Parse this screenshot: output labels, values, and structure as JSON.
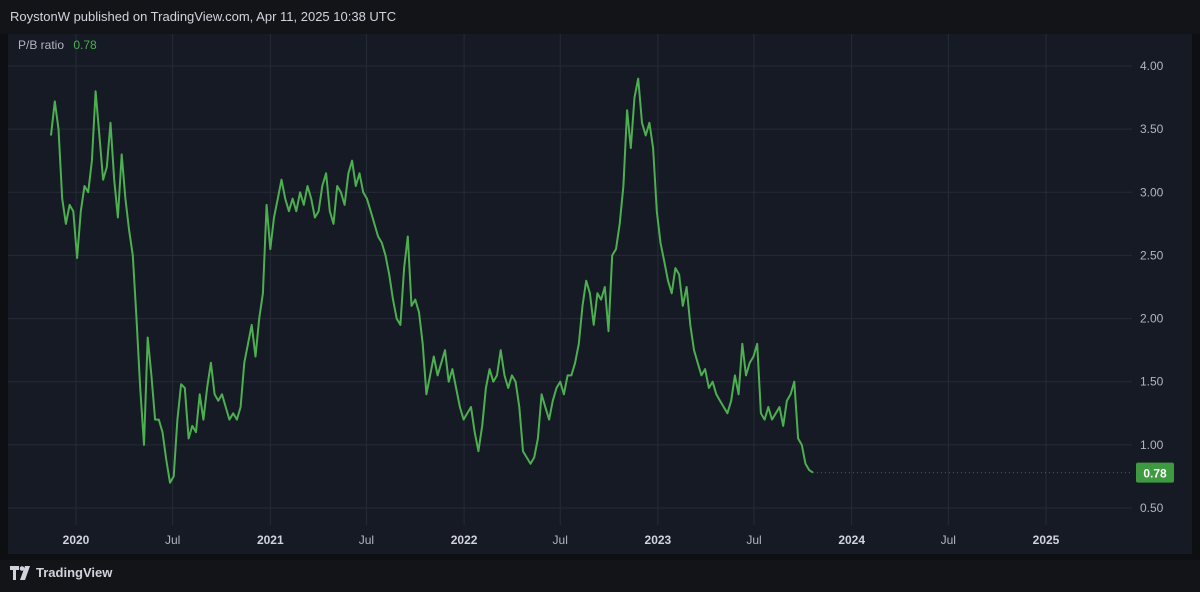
{
  "header": {
    "published": "RoystonW published on TradingView.com, Apr 11, 2025 10:38 UTC"
  },
  "legend": {
    "name": "P/B ratio",
    "value": "0.78"
  },
  "brand": {
    "name": "TradingView"
  },
  "colors": {
    "background": "#161a25",
    "line": "#4caf50",
    "grid": "#262b38",
    "text": "#b2b5be",
    "label_bg": "#3d9a40"
  },
  "chart_data": {
    "type": "line",
    "title": "",
    "series": [
      {
        "name": "P/B ratio",
        "color": "#4caf50",
        "points": [
          [
            "2019-11-15",
            3.45
          ],
          [
            "2019-11-22",
            3.72
          ],
          [
            "2019-11-29",
            3.5
          ],
          [
            "2019-12-06",
            2.95
          ],
          [
            "2019-12-13",
            2.75
          ],
          [
            "2019-12-20",
            2.9
          ],
          [
            "2019-12-27",
            2.85
          ],
          [
            "2020-01-03",
            2.48
          ],
          [
            "2020-01-10",
            2.85
          ],
          [
            "2020-01-17",
            3.05
          ],
          [
            "2020-01-24",
            3.0
          ],
          [
            "2020-01-31",
            3.25
          ],
          [
            "2020-02-07",
            3.8
          ],
          [
            "2020-02-14",
            3.45
          ],
          [
            "2020-02-21",
            3.1
          ],
          [
            "2020-02-28",
            3.2
          ],
          [
            "2020-03-06",
            3.55
          ],
          [
            "2020-03-13",
            3.1
          ],
          [
            "2020-03-20",
            2.8
          ],
          [
            "2020-03-27",
            3.3
          ],
          [
            "2020-04-03",
            2.95
          ],
          [
            "2020-04-10",
            2.7
          ],
          [
            "2020-04-17",
            2.5
          ],
          [
            "2020-04-24",
            2.0
          ],
          [
            "2020-05-01",
            1.45
          ],
          [
            "2020-05-08",
            1.0
          ],
          [
            "2020-05-15",
            1.85
          ],
          [
            "2020-05-22",
            1.55
          ],
          [
            "2020-05-29",
            1.2
          ],
          [
            "2020-06-05",
            1.2
          ],
          [
            "2020-06-12",
            1.1
          ],
          [
            "2020-06-19",
            0.88
          ],
          [
            "2020-06-26",
            0.7
          ],
          [
            "2020-07-03",
            0.75
          ],
          [
            "2020-07-10",
            1.2
          ],
          [
            "2020-07-17",
            1.48
          ],
          [
            "2020-07-24",
            1.45
          ],
          [
            "2020-07-31",
            1.05
          ],
          [
            "2020-08-07",
            1.15
          ],
          [
            "2020-08-14",
            1.1
          ],
          [
            "2020-08-21",
            1.4
          ],
          [
            "2020-08-28",
            1.2
          ],
          [
            "2020-09-04",
            1.45
          ],
          [
            "2020-09-11",
            1.65
          ],
          [
            "2020-09-18",
            1.4
          ],
          [
            "2020-09-25",
            1.35
          ],
          [
            "2020-10-02",
            1.4
          ],
          [
            "2020-10-09",
            1.3
          ],
          [
            "2020-10-16",
            1.2
          ],
          [
            "2020-10-23",
            1.25
          ],
          [
            "2020-10-30",
            1.2
          ],
          [
            "2020-11-06",
            1.3
          ],
          [
            "2020-11-13",
            1.65
          ],
          [
            "2020-11-20",
            1.8
          ],
          [
            "2020-11-27",
            1.95
          ],
          [
            "2020-12-04",
            1.7
          ],
          [
            "2020-12-11",
            2.0
          ],
          [
            "2020-12-18",
            2.2
          ],
          [
            "2020-12-25",
            2.9
          ],
          [
            "2021-01-01",
            2.55
          ],
          [
            "2021-01-08",
            2.8
          ],
          [
            "2021-01-15",
            2.95
          ],
          [
            "2021-01-22",
            3.1
          ],
          [
            "2021-01-29",
            2.95
          ],
          [
            "2021-02-05",
            2.85
          ],
          [
            "2021-02-12",
            2.95
          ],
          [
            "2021-02-19",
            2.85
          ],
          [
            "2021-02-26",
            3.0
          ],
          [
            "2021-03-05",
            2.9
          ],
          [
            "2021-03-12",
            3.05
          ],
          [
            "2021-03-19",
            2.95
          ],
          [
            "2021-03-26",
            2.8
          ],
          [
            "2021-04-02",
            2.85
          ],
          [
            "2021-04-09",
            3.05
          ],
          [
            "2021-04-16",
            3.15
          ],
          [
            "2021-04-23",
            2.85
          ],
          [
            "2021-04-30",
            2.75
          ],
          [
            "2021-05-07",
            3.05
          ],
          [
            "2021-05-14",
            3.0
          ],
          [
            "2021-05-21",
            2.9
          ],
          [
            "2021-05-28",
            3.15
          ],
          [
            "2021-06-04",
            3.25
          ],
          [
            "2021-06-11",
            3.05
          ],
          [
            "2021-06-18",
            3.15
          ],
          [
            "2021-06-25",
            3.0
          ],
          [
            "2021-07-02",
            2.95
          ],
          [
            "2021-07-09",
            2.85
          ],
          [
            "2021-07-16",
            2.75
          ],
          [
            "2021-07-23",
            2.65
          ],
          [
            "2021-07-30",
            2.6
          ],
          [
            "2021-08-06",
            2.5
          ],
          [
            "2021-08-13",
            2.35
          ],
          [
            "2021-08-20",
            2.15
          ],
          [
            "2021-08-27",
            2.0
          ],
          [
            "2021-09-03",
            1.95
          ],
          [
            "2021-09-10",
            2.4
          ],
          [
            "2021-09-17",
            2.65
          ],
          [
            "2021-09-24",
            2.1
          ],
          [
            "2021-10-01",
            2.15
          ],
          [
            "2021-10-08",
            2.05
          ],
          [
            "2021-10-15",
            1.8
          ],
          [
            "2021-10-22",
            1.4
          ],
          [
            "2021-10-29",
            1.55
          ],
          [
            "2021-11-05",
            1.7
          ],
          [
            "2021-11-12",
            1.55
          ],
          [
            "2021-11-19",
            1.65
          ],
          [
            "2021-11-26",
            1.75
          ],
          [
            "2021-12-03",
            1.5
          ],
          [
            "2021-12-10",
            1.6
          ],
          [
            "2021-12-17",
            1.45
          ],
          [
            "2021-12-24",
            1.3
          ],
          [
            "2021-12-31",
            1.2
          ],
          [
            "2022-01-07",
            1.25
          ],
          [
            "2022-01-14",
            1.3
          ],
          [
            "2022-01-21",
            1.1
          ],
          [
            "2022-01-28",
            0.95
          ],
          [
            "2022-02-04",
            1.15
          ],
          [
            "2022-02-11",
            1.45
          ],
          [
            "2022-02-18",
            1.6
          ],
          [
            "2022-02-25",
            1.5
          ],
          [
            "2022-03-04",
            1.55
          ],
          [
            "2022-03-11",
            1.75
          ],
          [
            "2022-03-18",
            1.55
          ],
          [
            "2022-03-25",
            1.45
          ],
          [
            "2022-04-01",
            1.55
          ],
          [
            "2022-04-08",
            1.5
          ],
          [
            "2022-04-15",
            1.3
          ],
          [
            "2022-04-22",
            0.95
          ],
          [
            "2022-05-06",
            0.85
          ],
          [
            "2022-05-13",
            0.9
          ],
          [
            "2022-05-20",
            1.05
          ],
          [
            "2022-05-27",
            1.4
          ],
          [
            "2022-06-03",
            1.3
          ],
          [
            "2022-06-10",
            1.2
          ],
          [
            "2022-06-17",
            1.35
          ],
          [
            "2022-06-24",
            1.45
          ],
          [
            "2022-07-01",
            1.5
          ],
          [
            "2022-07-08",
            1.4
          ],
          [
            "2022-07-15",
            1.55
          ],
          [
            "2022-07-22",
            1.55
          ],
          [
            "2022-07-29",
            1.65
          ],
          [
            "2022-08-05",
            1.8
          ],
          [
            "2022-08-12",
            2.1
          ],
          [
            "2022-08-19",
            2.3
          ],
          [
            "2022-08-26",
            2.2
          ],
          [
            "2022-09-02",
            1.95
          ],
          [
            "2022-09-09",
            2.2
          ],
          [
            "2022-09-16",
            2.15
          ],
          [
            "2022-09-23",
            2.25
          ],
          [
            "2022-09-30",
            1.9
          ],
          [
            "2022-10-07",
            2.5
          ],
          [
            "2022-10-14",
            2.55
          ],
          [
            "2022-10-21",
            2.75
          ],
          [
            "2022-10-28",
            3.05
          ],
          [
            "2022-11-04",
            3.65
          ],
          [
            "2022-11-11",
            3.35
          ],
          [
            "2022-11-18",
            3.75
          ],
          [
            "2022-11-25",
            3.9
          ],
          [
            "2022-12-02",
            3.55
          ],
          [
            "2022-12-09",
            3.45
          ],
          [
            "2022-12-16",
            3.55
          ],
          [
            "2022-12-23",
            3.35
          ],
          [
            "2022-12-30",
            2.85
          ],
          [
            "2023-01-06",
            2.6
          ],
          [
            "2023-01-13",
            2.45
          ],
          [
            "2023-01-20",
            2.3
          ],
          [
            "2023-01-27",
            2.2
          ],
          [
            "2023-02-03",
            2.4
          ],
          [
            "2023-02-10",
            2.35
          ],
          [
            "2023-02-17",
            2.1
          ],
          [
            "2023-02-24",
            2.25
          ],
          [
            "2023-03-03",
            1.95
          ],
          [
            "2023-03-10",
            1.75
          ],
          [
            "2023-03-17",
            1.65
          ],
          [
            "2023-03-24",
            1.55
          ],
          [
            "2023-03-31",
            1.6
          ],
          [
            "2023-04-07",
            1.45
          ],
          [
            "2023-04-14",
            1.5
          ],
          [
            "2023-04-21",
            1.4
          ],
          [
            "2023-04-28",
            1.35
          ],
          [
            "2023-05-05",
            1.3
          ],
          [
            "2023-05-12",
            1.25
          ],
          [
            "2023-05-19",
            1.35
          ],
          [
            "2023-05-26",
            1.55
          ],
          [
            "2023-06-02",
            1.4
          ],
          [
            "2023-06-09",
            1.8
          ],
          [
            "2023-06-16",
            1.55
          ],
          [
            "2023-06-23",
            1.65
          ],
          [
            "2023-06-30",
            1.7
          ],
          [
            "2023-07-07",
            1.8
          ],
          [
            "2023-07-14",
            1.25
          ],
          [
            "2023-07-21",
            1.2
          ],
          [
            "2023-07-28",
            1.3
          ],
          [
            "2023-08-04",
            1.2
          ],
          [
            "2023-08-11",
            1.25
          ],
          [
            "2023-08-18",
            1.3
          ],
          [
            "2023-08-25",
            1.15
          ],
          [
            "2023-09-01",
            1.35
          ],
          [
            "2023-09-08",
            1.4
          ],
          [
            "2023-09-15",
            1.5
          ],
          [
            "2023-09-22",
            1.05
          ],
          [
            "2023-09-29",
            1.0
          ],
          [
            "2023-10-06",
            0.85
          ],
          [
            "2023-10-13",
            0.8
          ],
          [
            "2023-10-20",
            0.78
          ]
        ]
      }
    ],
    "x_ticks": [
      "2020",
      "Jul",
      "2021",
      "Jul",
      "2022",
      "Jul",
      "2023",
      "Jul",
      "2024",
      "Jul",
      "2025"
    ],
    "y_ticks": [
      "4.00",
      "3.50",
      "3.00",
      "2.50",
      "2.00",
      "1.50",
      "1.00",
      "0.50"
    ],
    "ylim": [
      0.4,
      4.2
    ],
    "last_value": "0.78",
    "grid": true
  }
}
